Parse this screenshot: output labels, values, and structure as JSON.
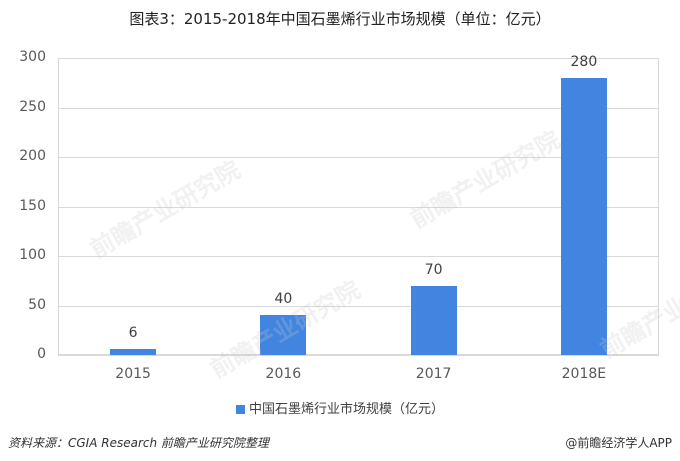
{
  "chart_data": {
    "type": "bar",
    "title": "图表3：2015-2018年中国石墨烯行业市场规模（单位：亿元）",
    "categories": [
      "2015",
      "2016",
      "2017",
      "2018E"
    ],
    "series": [
      {
        "name": "中国石墨烯行业市场规模（亿元）",
        "values": [
          6,
          40,
          70,
          280
        ],
        "color": "#4285E0"
      }
    ],
    "xlabel": "",
    "ylabel": "",
    "ylim": [
      0,
      300
    ],
    "yticks": [
      "0",
      "50",
      "100",
      "150",
      "200",
      "250",
      "300"
    ],
    "grid": true,
    "legend_position": "bottom",
    "data_labels": [
      "6",
      "40",
      "70",
      "280"
    ]
  },
  "footer": {
    "source": "资料来源：CGIA Research  前瞻产业研究院整理",
    "credit": "@前瞻经济学人APP"
  },
  "watermark": "前瞻产业研究院"
}
